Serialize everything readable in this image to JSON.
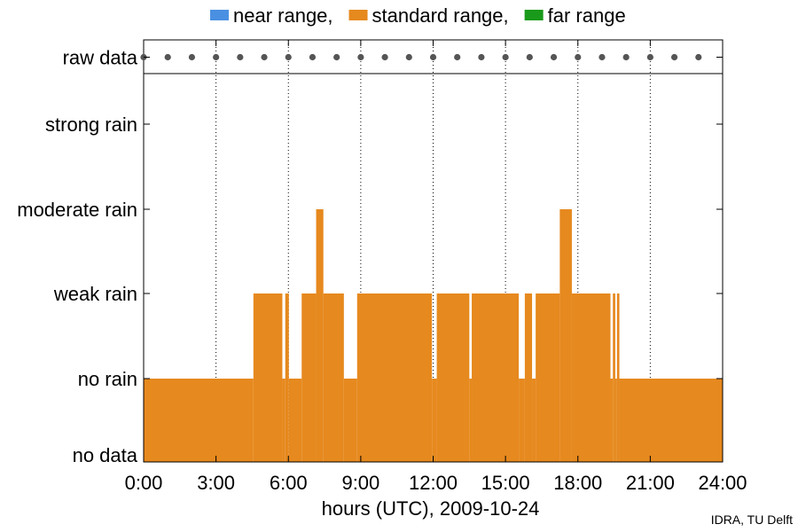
{
  "chart_data": {
    "type": "area",
    "xlabel": "hours (UTC), 2009-10-24",
    "x_range_hours": [
      0,
      24
    ],
    "x_ticks": [
      "0:00",
      "3:00",
      "6:00",
      "9:00",
      "12:00",
      "15:00",
      "18:00",
      "21:00",
      "24:00"
    ],
    "y_categories": [
      "no data",
      "no rain",
      "weak rain",
      "moderate rain",
      "strong rain"
    ],
    "raw_data_label": "raw data",
    "legend": [
      {
        "name": "near range,",
        "color": "#4a90e2"
      },
      {
        "name": "standard range,",
        "color": "#e6891e"
      },
      {
        "name": "far range",
        "color": "#1a9a1a"
      }
    ],
    "legend_position": "top",
    "grid": "vertical dotted",
    "series": [
      {
        "name": "standard range",
        "color": "#e6891e",
        "segments": [
          {
            "start": 0.0,
            "end": 4.55,
            "level": 1
          },
          {
            "start": 4.55,
            "end": 5.75,
            "level": 2
          },
          {
            "start": 5.75,
            "end": 5.87,
            "level": 1
          },
          {
            "start": 5.87,
            "end": 6.02,
            "level": 2
          },
          {
            "start": 6.02,
            "end": 6.55,
            "level": 1
          },
          {
            "start": 6.55,
            "end": 7.15,
            "level": 2
          },
          {
            "start": 7.15,
            "end": 7.45,
            "level": 3
          },
          {
            "start": 7.45,
            "end": 8.3,
            "level": 2
          },
          {
            "start": 8.3,
            "end": 8.85,
            "level": 1
          },
          {
            "start": 8.85,
            "end": 11.95,
            "level": 2
          },
          {
            "start": 11.95,
            "end": 12.15,
            "level": 1
          },
          {
            "start": 12.15,
            "end": 13.5,
            "level": 2
          },
          {
            "start": 13.5,
            "end": 13.6,
            "level": 1
          },
          {
            "start": 13.6,
            "end": 15.55,
            "level": 2
          },
          {
            "start": 15.55,
            "end": 15.8,
            "level": 1
          },
          {
            "start": 15.8,
            "end": 16.1,
            "level": 2
          },
          {
            "start": 16.1,
            "end": 16.25,
            "level": 1
          },
          {
            "start": 16.25,
            "end": 17.25,
            "level": 2
          },
          {
            "start": 17.25,
            "end": 17.75,
            "level": 3
          },
          {
            "start": 17.75,
            "end": 19.35,
            "level": 2
          },
          {
            "start": 19.35,
            "end": 19.45,
            "level": 1
          },
          {
            "start": 19.45,
            "end": 19.55,
            "level": 2
          },
          {
            "start": 19.55,
            "end": 19.62,
            "level": 1
          },
          {
            "start": 19.62,
            "end": 19.72,
            "level": 2
          },
          {
            "start": 19.72,
            "end": 24.0,
            "level": 1
          }
        ]
      }
    ],
    "raw_data_points_hours": [
      0,
      1,
      2,
      3,
      4,
      5,
      6,
      7,
      8,
      9,
      10,
      11,
      12,
      13,
      14,
      15,
      16,
      17,
      18,
      19,
      20,
      21,
      22,
      23
    ]
  },
  "credit": "IDRA, TU Delft"
}
